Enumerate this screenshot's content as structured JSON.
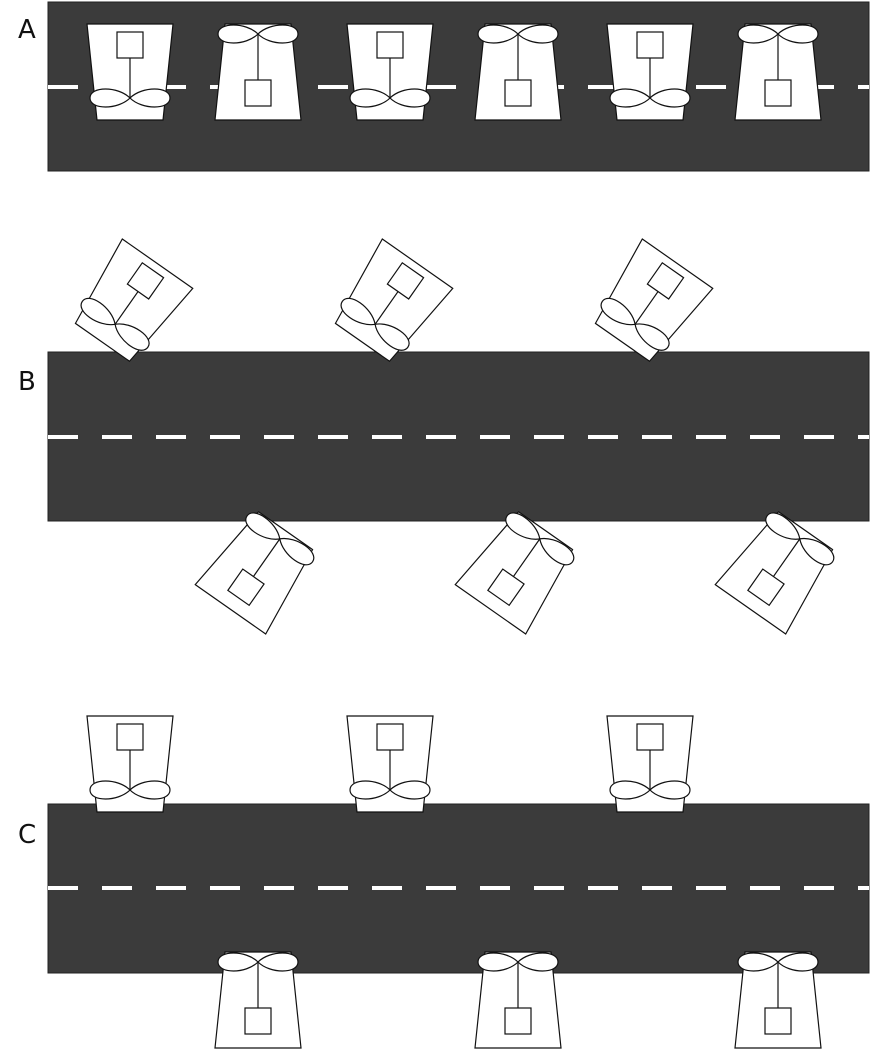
{
  "sections": [
    {
      "id": "A",
      "label": "A"
    },
    {
      "id": "B",
      "label": "B"
    },
    {
      "id": "C",
      "label": "C"
    }
  ],
  "symbols": {
    "box": "square-icon",
    "propeller": "propeller-icon"
  }
}
